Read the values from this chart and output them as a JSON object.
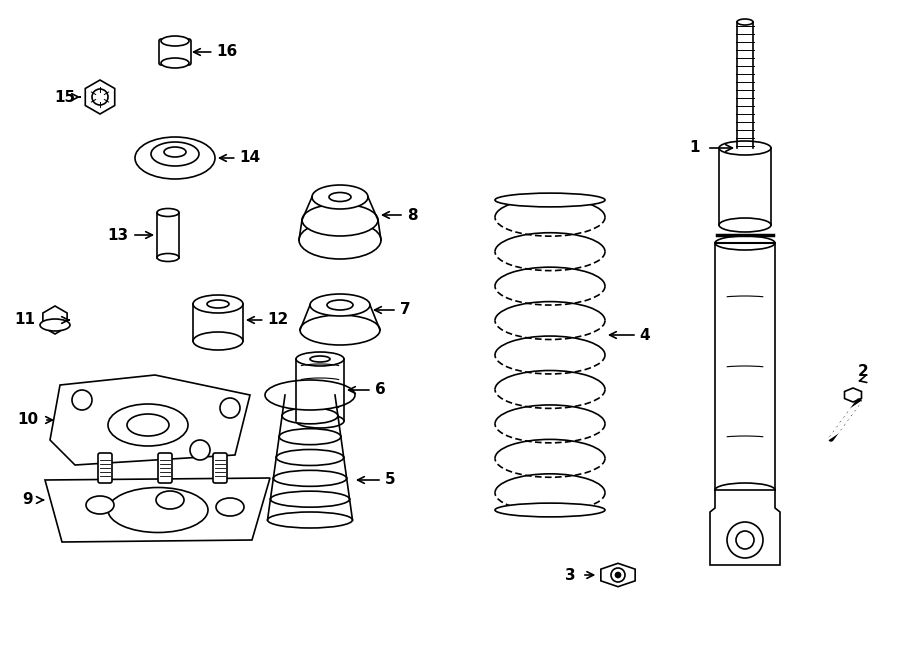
{
  "bg_color": "#ffffff",
  "lc": "#000000",
  "lw": 1.2,
  "figw": 9.0,
  "figh": 6.62,
  "dpi": 100,
  "parts_labels": {
    "1": [
      0.73,
      0.775,
      0.76,
      0.775,
      "right"
    ],
    "2": [
      0.96,
      0.43,
      0.945,
      0.395,
      "right"
    ],
    "3": [
      0.62,
      0.115,
      0.65,
      0.115,
      "left"
    ],
    "4": [
      0.7,
      0.53,
      0.68,
      0.53,
      "right"
    ],
    "5": [
      0.4,
      0.215,
      0.375,
      0.215,
      "right"
    ],
    "6": [
      0.415,
      0.38,
      0.39,
      0.38,
      "right"
    ],
    "7": [
      0.44,
      0.51,
      0.415,
      0.51,
      "right"
    ],
    "8": [
      0.44,
      0.64,
      0.415,
      0.64,
      "right"
    ],
    "9": [
      0.065,
      0.295,
      0.095,
      0.295,
      "left"
    ],
    "10": [
      0.055,
      0.43,
      0.09,
      0.43,
      "left"
    ],
    "11": [
      0.025,
      0.535,
      0.055,
      0.535,
      "left"
    ],
    "12": [
      0.235,
      0.535,
      0.205,
      0.535,
      "right"
    ],
    "13": [
      0.1,
      0.65,
      0.13,
      0.65,
      "left"
    ],
    "14": [
      0.265,
      0.755,
      0.235,
      0.755,
      "right"
    ],
    "15": [
      0.045,
      0.82,
      0.08,
      0.82,
      "left"
    ],
    "16": [
      0.255,
      0.88,
      0.22,
      0.88,
      "right"
    ]
  }
}
